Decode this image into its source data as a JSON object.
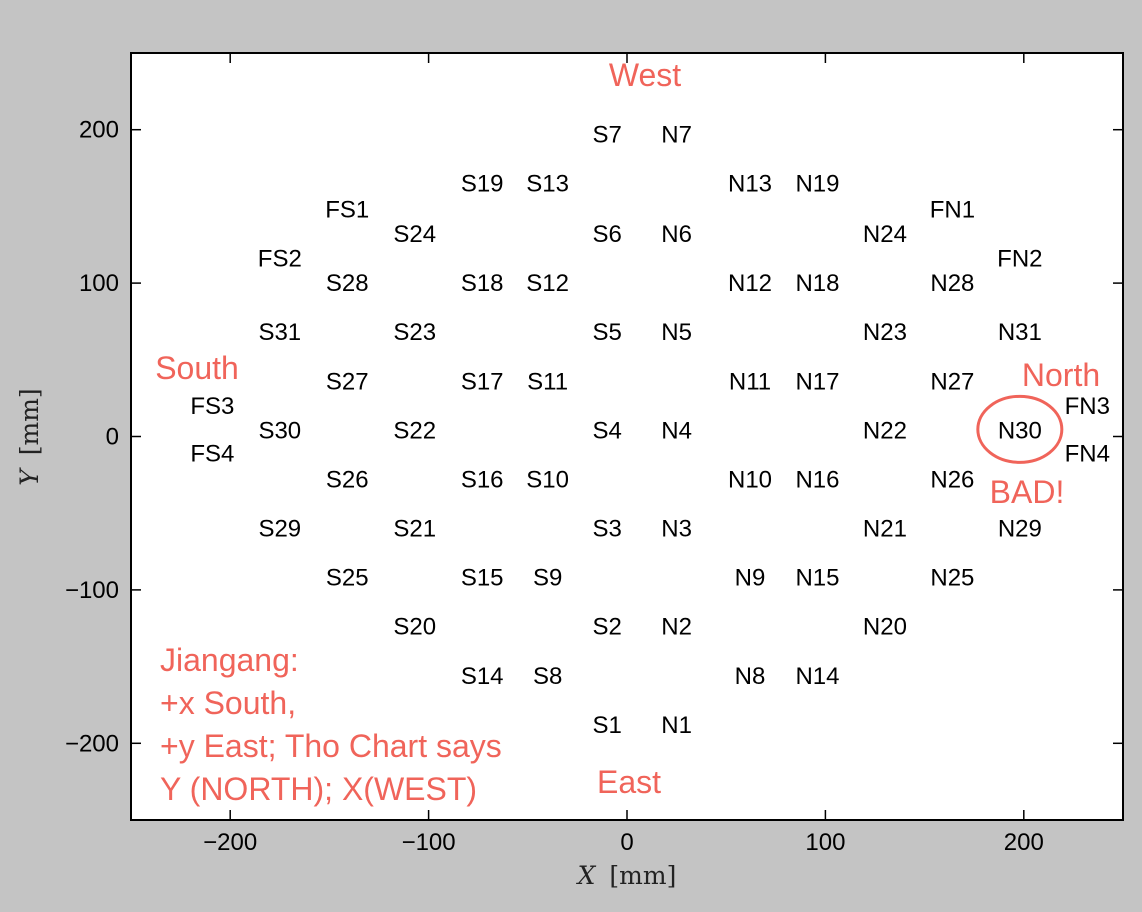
{
  "chart_data": {
    "type": "scatter",
    "xlabel_var": "X",
    "xlabel_unit": "[mm]",
    "ylabel_var": "Y",
    "ylabel_unit": "[mm]",
    "xlim": [
      -250,
      250
    ],
    "ylim": [
      -250,
      250
    ],
    "x_ticks": [
      {
        "value": -200,
        "label": "−200"
      },
      {
        "value": -100,
        "label": "−100"
      },
      {
        "value": 0,
        "label": "0"
      },
      {
        "value": 100,
        "label": "100"
      },
      {
        "value": 200,
        "label": "200"
      }
    ],
    "y_ticks": [
      {
        "value": 200,
        "label": "200"
      },
      {
        "value": 100,
        "label": "100"
      },
      {
        "value": 0,
        "label": "0"
      },
      {
        "value": -100,
        "label": "−100"
      },
      {
        "value": -200,
        "label": "−200"
      }
    ],
    "grid": false,
    "points": [
      {
        "label": "S7",
        "x": -10,
        "y": 197
      },
      {
        "label": "N7",
        "x": 25,
        "y": 197
      },
      {
        "label": "S19",
        "x": -73,
        "y": 165
      },
      {
        "label": "S13",
        "x": -40,
        "y": 165
      },
      {
        "label": "N13",
        "x": 62,
        "y": 165
      },
      {
        "label": "N19",
        "x": 96,
        "y": 165
      },
      {
        "label": "FS1",
        "x": -141,
        "y": 148
      },
      {
        "label": "FN1",
        "x": 164,
        "y": 148
      },
      {
        "label": "S24",
        "x": -107,
        "y": 132
      },
      {
        "label": "S6",
        "x": -10,
        "y": 132
      },
      {
        "label": "N6",
        "x": 25,
        "y": 132
      },
      {
        "label": "N24",
        "x": 130,
        "y": 132
      },
      {
        "label": "FS2",
        "x": -175,
        "y": 116
      },
      {
        "label": "FN2",
        "x": 198,
        "y": 116
      },
      {
        "label": "S28",
        "x": -141,
        "y": 100
      },
      {
        "label": "S18",
        "x": -73,
        "y": 100
      },
      {
        "label": "S12",
        "x": -40,
        "y": 100
      },
      {
        "label": "N12",
        "x": 62,
        "y": 100
      },
      {
        "label": "N18",
        "x": 96,
        "y": 100
      },
      {
        "label": "N28",
        "x": 164,
        "y": 100
      },
      {
        "label": "S31",
        "x": -175,
        "y": 68
      },
      {
        "label": "S23",
        "x": -107,
        "y": 68
      },
      {
        "label": "S5",
        "x": -10,
        "y": 68
      },
      {
        "label": "N5",
        "x": 25,
        "y": 68
      },
      {
        "label": "N23",
        "x": 130,
        "y": 68
      },
      {
        "label": "N31",
        "x": 198,
        "y": 68
      },
      {
        "label": "S27",
        "x": -141,
        "y": 36
      },
      {
        "label": "S17",
        "x": -73,
        "y": 36
      },
      {
        "label": "S11",
        "x": -40,
        "y": 36
      },
      {
        "label": "N11",
        "x": 62,
        "y": 36
      },
      {
        "label": "N17",
        "x": 96,
        "y": 36
      },
      {
        "label": "N27",
        "x": 164,
        "y": 36
      },
      {
        "label": "FS3",
        "x": -209,
        "y": 20
      },
      {
        "label": "FN3",
        "x": 232,
        "y": 20
      },
      {
        "label": "S30",
        "x": -175,
        "y": 4
      },
      {
        "label": "S22",
        "x": -107,
        "y": 4
      },
      {
        "label": "S4",
        "x": -10,
        "y": 4
      },
      {
        "label": "N4",
        "x": 25,
        "y": 4
      },
      {
        "label": "N22",
        "x": 130,
        "y": 4
      },
      {
        "label": "N30",
        "x": 198,
        "y": 4
      },
      {
        "label": "FS4",
        "x": -209,
        "y": -11
      },
      {
        "label": "FN4",
        "x": 232,
        "y": -11
      },
      {
        "label": "S26",
        "x": -141,
        "y": -28
      },
      {
        "label": "S16",
        "x": -73,
        "y": -28
      },
      {
        "label": "S10",
        "x": -40,
        "y": -28
      },
      {
        "label": "N10",
        "x": 62,
        "y": -28
      },
      {
        "label": "N16",
        "x": 96,
        "y": -28
      },
      {
        "label": "N26",
        "x": 164,
        "y": -28
      },
      {
        "label": "S29",
        "x": -175,
        "y": -60
      },
      {
        "label": "S21",
        "x": -107,
        "y": -60
      },
      {
        "label": "S3",
        "x": -10,
        "y": -60
      },
      {
        "label": "N3",
        "x": 25,
        "y": -60
      },
      {
        "label": "N21",
        "x": 130,
        "y": -60
      },
      {
        "label": "N29",
        "x": 198,
        "y": -60
      },
      {
        "label": "S25",
        "x": -141,
        "y": -92
      },
      {
        "label": "S15",
        "x": -73,
        "y": -92
      },
      {
        "label": "S9",
        "x": -40,
        "y": -92
      },
      {
        "label": "N9",
        "x": 62,
        "y": -92
      },
      {
        "label": "N15",
        "x": 96,
        "y": -92
      },
      {
        "label": "N25",
        "x": 164,
        "y": -92
      },
      {
        "label": "S20",
        "x": -107,
        "y": -124
      },
      {
        "label": "S2",
        "x": -10,
        "y": -124
      },
      {
        "label": "N2",
        "x": 25,
        "y": -124
      },
      {
        "label": "N20",
        "x": 130,
        "y": -124
      },
      {
        "label": "S14",
        "x": -73,
        "y": -156
      },
      {
        "label": "S8",
        "x": -40,
        "y": -156
      },
      {
        "label": "N8",
        "x": 62,
        "y": -156
      },
      {
        "label": "N14",
        "x": 96,
        "y": -156
      },
      {
        "label": "S1",
        "x": -10,
        "y": -188
      },
      {
        "label": "N1",
        "x": 25,
        "y": -188
      }
    ]
  },
  "annotations": {
    "color": "#f0645a",
    "west": "West",
    "east": "East",
    "south": "South",
    "north": "North",
    "bad": "BAD!",
    "circled_sensor": "N30",
    "note_lines": [
      "Jiangang:",
      "+x South,",
      "+y East; Tho Chart says",
      "Y (NORTH); X(WEST)"
    ]
  }
}
